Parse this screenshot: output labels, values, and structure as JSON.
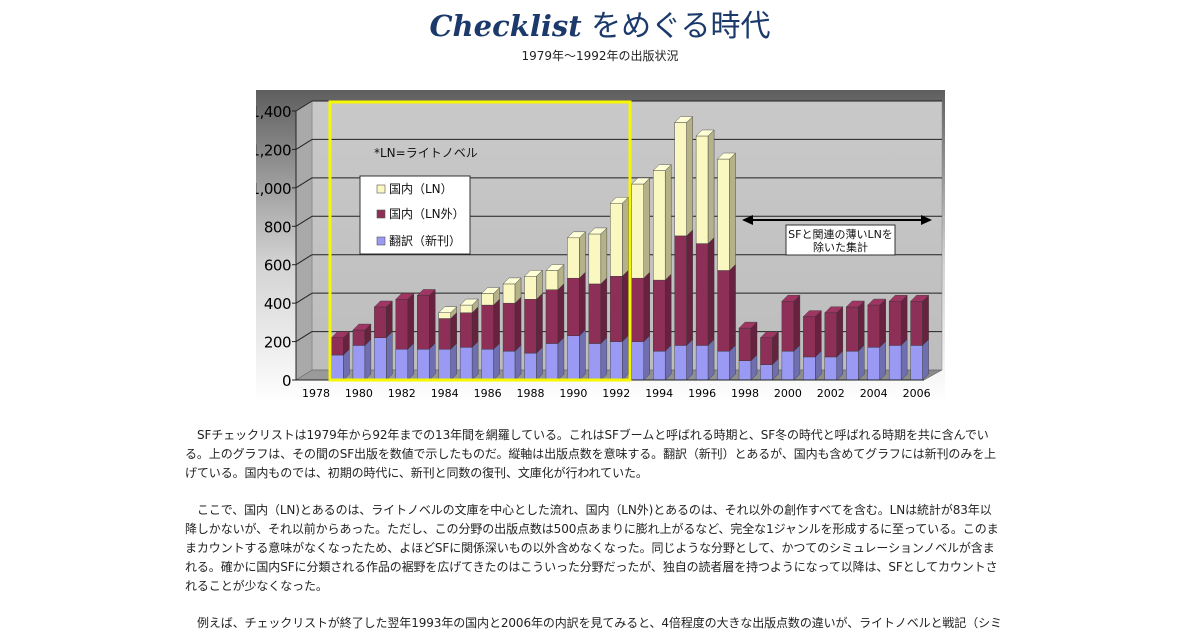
{
  "header": {
    "title_latin": "Checklist",
    "title_jp": " をめぐる時代",
    "subtitle": "1979年～1992年の出版状況"
  },
  "colors": {
    "ln": "#fbf7c0",
    "ln_outside": "#8e2f58",
    "translation": "#9a9af5",
    "highlight_box": "#f7f700",
    "title": "#1b3a6b"
  },
  "chart_data": {
    "type": "bar",
    "stacked": true,
    "style": "3d",
    "x": [
      1979,
      1980,
      1981,
      1982,
      1983,
      1984,
      1985,
      1986,
      1987,
      1988,
      1989,
      1990,
      1991,
      1992,
      1993,
      1994,
      1995,
      1996,
      1997,
      1998,
      1999,
      2000,
      2001,
      2002,
      2003,
      2004,
      2005,
      2006
    ],
    "x_tick_labels": [
      "1978",
      "1980",
      "1982",
      "1984",
      "1986",
      "1988",
      "1990",
      "1992",
      "1994",
      "1996",
      "1998",
      "2000",
      "2002",
      "2004",
      "2006"
    ],
    "y_tick_labels": [
      "0",
      "200",
      "400",
      "600",
      "800",
      "1,000",
      "1,200",
      "1,400"
    ],
    "ylim": [
      0,
      1400
    ],
    "grid": true,
    "series": [
      {
        "name": "翻訳（新刊）",
        "color_key": "translation",
        "values": [
          130,
          180,
          220,
          160,
          160,
          160,
          170,
          160,
          150,
          140,
          190,
          230,
          190,
          200,
          200,
          150,
          180,
          180,
          150,
          100,
          80,
          150,
          120,
          120,
          150,
          170,
          180,
          180
        ]
      },
      {
        "name": "国内（LN外）",
        "color_key": "ln_outside",
        "values": [
          90,
          80,
          160,
          260,
          280,
          160,
          180,
          230,
          250,
          280,
          280,
          300,
          310,
          340,
          330,
          370,
          570,
          530,
          420,
          170,
          140,
          260,
          210,
          230,
          230,
          220,
          230,
          230
        ]
      },
      {
        "name": "国内（LN）",
        "color_key": "ln",
        "values": [
          0,
          0,
          0,
          0,
          0,
          30,
          40,
          60,
          100,
          120,
          100,
          210,
          260,
          380,
          490,
          570,
          590,
          560,
          580,
          0,
          0,
          0,
          0,
          0,
          0,
          0,
          0,
          0
        ]
      }
    ],
    "legend_position": "upper-left inside plot",
    "annotations": {
      "note": "*LN=ライトノベル",
      "range_label_line1": "SFと関連の薄いLNを",
      "range_label_line2": "除いた集計",
      "highlight_box_range": [
        1979,
        1992
      ],
      "arrow_range": [
        1998,
        2006
      ]
    }
  },
  "paragraphs": [
    {
      "lines": [
        "SFチェックリストは1979年から92年までの13年間を網羅している。これはSFブームと呼ばれる時期と、SF冬の時代と呼ばれる時期を共に含んでい",
        "る。上のグラフは、その間のSF出版を数値で示したものだ。縦軸は出版点数を意味する。翻訳（新刊）とあるが、国内も含めてグラフには新刊のみを上",
        "げている。国内ものでは、初期の時代に、新刊と同数の復刊、文庫化が行われていた。"
      ]
    },
    {
      "lines": [
        "ここで、国内（LN)とあるのは、ライトノベルの文庫を中心とした流れ、国内（LN外)とあるのは、それ以外の創作すべてを含む。LNは統計が83年以",
        "降しかないが、それ以前からあった。ただし、この分野の出版点数は500点あまりに膨れ上がるなど、完全な1ジャンルを形成するに至っている。このま",
        "まカウントする意味がなくなったため、よほどSFに関係深いもの以外含めなくなった。同じような分野として、かつてのシミュレーションノベルが含ま",
        "れる。確かに国内SFに分類される作品の裾野を広げてきたのはこういった分野だったが、独自の読者層を持つようになって以降は、SFとしてカウントさ",
        "れることが少なくなった。"
      ]
    },
    {
      "lines": [
        "例えば、チェックリストが終了した翌年1993年の国内と2006年の内訳を見てみると、4倍程度の大きな出版点数の違いが、ライトノベルと戦記（シミ"
      ]
    }
  ]
}
